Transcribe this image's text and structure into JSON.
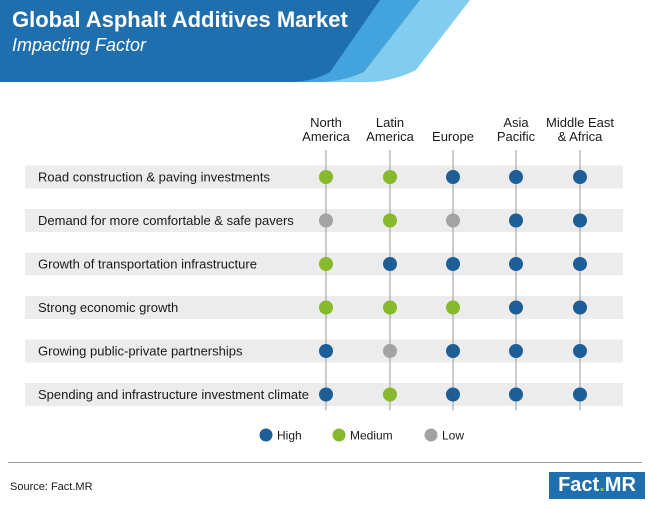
{
  "title": "Global Asphalt Additives Market",
  "subtitle": "Impacting Factor",
  "source": "Source: Fact.MR",
  "logo": {
    "part1": "Fact",
    "dot": ".",
    "part2": "MR"
  },
  "colors": {
    "High": "#1d5e96",
    "Medium": "#86b92b",
    "Low": "#a3a3a3",
    "banner_dark": "#1f6fae",
    "banner_mid": "#43a3dc",
    "banner_light": "#82cdef",
    "row_band": "#ececec"
  },
  "chart_data": {
    "type": "table",
    "columns": [
      [
        "North",
        "America"
      ],
      [
        "Latin",
        "America"
      ],
      [
        "Europe"
      ],
      [
        "Asia",
        "Pacific"
      ],
      [
        "Middle East",
        "& Africa"
      ]
    ],
    "rows": [
      {
        "label": "Road construction & paving investments",
        "values": [
          "Medium",
          "Medium",
          "High",
          "High",
          "High"
        ]
      },
      {
        "label": "Demand for more comfortable & safe pavers",
        "values": [
          "Low",
          "Medium",
          "Low",
          "High",
          "High"
        ]
      },
      {
        "label": "Growth of transportation infrastructure",
        "values": [
          "Medium",
          "High",
          "High",
          "High",
          "High"
        ]
      },
      {
        "label": "Strong economic growth",
        "values": [
          "Medium",
          "Medium",
          "Medium",
          "High",
          "High"
        ]
      },
      {
        "label": "Growing public-private partnerships",
        "values": [
          "High",
          "Low",
          "High",
          "High",
          "High"
        ]
      },
      {
        "label": "Spending and infrastructure investment climate",
        "values": [
          "High",
          "Medium",
          "High",
          "High",
          "High"
        ]
      }
    ],
    "legend": [
      "High",
      "Medium",
      "Low"
    ]
  }
}
